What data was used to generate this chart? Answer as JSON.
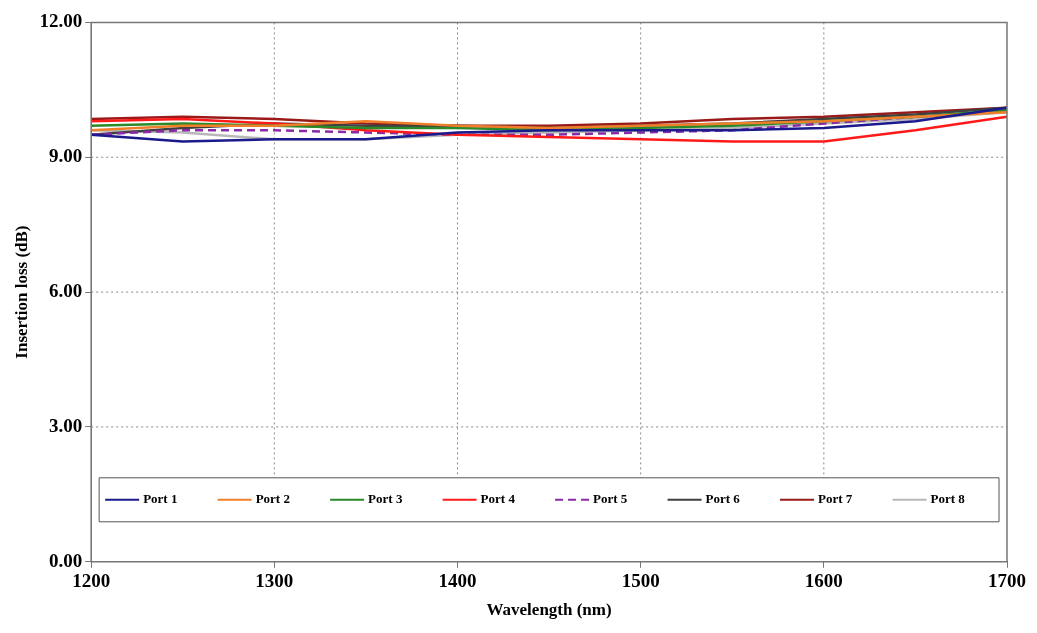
{
  "chart_data": {
    "type": "line",
    "xlabel": "Wavelength (nm)",
    "ylabel": "Insertion loss (dB)",
    "x": [
      1200,
      1250,
      1300,
      1350,
      1400,
      1450,
      1500,
      1550,
      1600,
      1650,
      1700
    ],
    "series": [
      {
        "name": "Port 1",
        "color": "#1a1a8c",
        "values": [
          9.5,
          9.35,
          9.4,
          9.4,
          9.55,
          9.6,
          9.6,
          9.6,
          9.65,
          9.8,
          10.1
        ]
      },
      {
        "name": "Port 2",
        "color": "#f07f2a",
        "values": [
          9.6,
          9.7,
          9.7,
          9.8,
          9.7,
          9.65,
          9.7,
          9.75,
          9.8,
          9.9,
          10.0
        ]
      },
      {
        "name": "Port 3",
        "color": "#2a8a2a",
        "values": [
          9.7,
          9.75,
          9.7,
          9.65,
          9.65,
          9.6,
          9.65,
          9.7,
          9.8,
          9.9,
          10.05
        ]
      },
      {
        "name": "Port 4",
        "color": "#ff1a1a",
        "values": [
          9.8,
          9.85,
          9.75,
          9.6,
          9.5,
          9.45,
          9.4,
          9.35,
          9.35,
          9.6,
          9.9
        ]
      },
      {
        "name": "Port 5",
        "color": "#8a2aa8",
        "line_style": "dashed",
        "values": [
          9.5,
          9.6,
          9.6,
          9.55,
          9.5,
          9.5,
          9.55,
          9.6,
          9.75,
          9.9,
          10.05
        ]
      },
      {
        "name": "Port 6",
        "color": "#404040",
        "values": [
          9.5,
          9.65,
          9.75,
          9.7,
          9.7,
          9.65,
          9.7,
          9.75,
          9.85,
          9.95,
          10.1
        ]
      },
      {
        "name": "Port 7",
        "color": "#9a1a1a",
        "values": [
          9.85,
          9.9,
          9.85,
          9.75,
          9.7,
          9.7,
          9.75,
          9.85,
          9.9,
          10.0,
          10.1
        ]
      },
      {
        "name": "Port 8",
        "color": "#b8b8b8",
        "values": [
          9.6,
          9.55,
          9.4,
          9.4,
          9.5,
          9.55,
          9.6,
          9.65,
          9.75,
          9.85,
          10.0
        ]
      }
    ],
    "xlim": [
      1200,
      1700
    ],
    "xticks": [
      1200,
      1300,
      1400,
      1500,
      1600,
      1700
    ],
    "ylim": [
      0,
      12
    ],
    "yticks": [
      {
        "value": 0,
        "label": "0.00"
      },
      {
        "value": 3,
        "label": "3.00"
      },
      {
        "value": 6,
        "label": "6.00"
      },
      {
        "value": 9,
        "label": "9.00"
      },
      {
        "value": 12,
        "label": "12.00"
      }
    ],
    "grid": true,
    "legend": "bottom",
    "line_style": "solid"
  }
}
